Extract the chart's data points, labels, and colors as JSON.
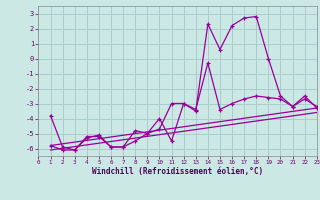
{
  "xlabel": "Windchill (Refroidissement éolien,°C)",
  "background_color": "#cce8e4",
  "grid_color": "#aacccc",
  "line_color": "#990099",
  "xlim": [
    0,
    23
  ],
  "ylim": [
    -6.5,
    3.5
  ],
  "yticks": [
    -6,
    -5,
    -4,
    -3,
    -2,
    -1,
    0,
    1,
    2,
    3
  ],
  "xticks": [
    0,
    1,
    2,
    3,
    4,
    5,
    6,
    7,
    8,
    9,
    10,
    11,
    12,
    13,
    14,
    15,
    16,
    17,
    18,
    19,
    20,
    21,
    22,
    23
  ],
  "line1_x": [
    1,
    2,
    3,
    4,
    5,
    6,
    7,
    8,
    9,
    10,
    11,
    12,
    13,
    14,
    15,
    16,
    17,
    18,
    19,
    20,
    21,
    22,
    23
  ],
  "line1_y": [
    -3.8,
    -5.9,
    -6.1,
    -5.3,
    -5.1,
    -5.9,
    -5.9,
    -5.5,
    -5.0,
    -4.7,
    -3.0,
    -3.0,
    -3.5,
    2.3,
    0.6,
    2.2,
    2.7,
    2.8,
    0.0,
    -2.5,
    -3.2,
    -2.5,
    -3.3
  ],
  "line2_x": [
    1,
    2,
    3,
    4,
    5,
    6,
    7,
    8,
    9,
    10,
    11,
    12,
    13,
    14,
    15,
    16,
    17,
    18,
    19,
    20,
    21,
    22,
    23
  ],
  "line2_y": [
    -5.8,
    -6.1,
    -6.1,
    -5.2,
    -5.2,
    -5.9,
    -5.9,
    -4.8,
    -5.0,
    -4.0,
    -5.5,
    -3.0,
    -3.4,
    -0.3,
    -3.4,
    -3.0,
    -2.7,
    -2.5,
    -2.6,
    -2.7,
    -3.2,
    -2.7,
    -3.2
  ],
  "line3_x": [
    1,
    23
  ],
  "line3_y": [
    -5.8,
    -3.3
  ],
  "line4_x": [
    1,
    23
  ],
  "line4_y": [
    -6.1,
    -3.6
  ]
}
